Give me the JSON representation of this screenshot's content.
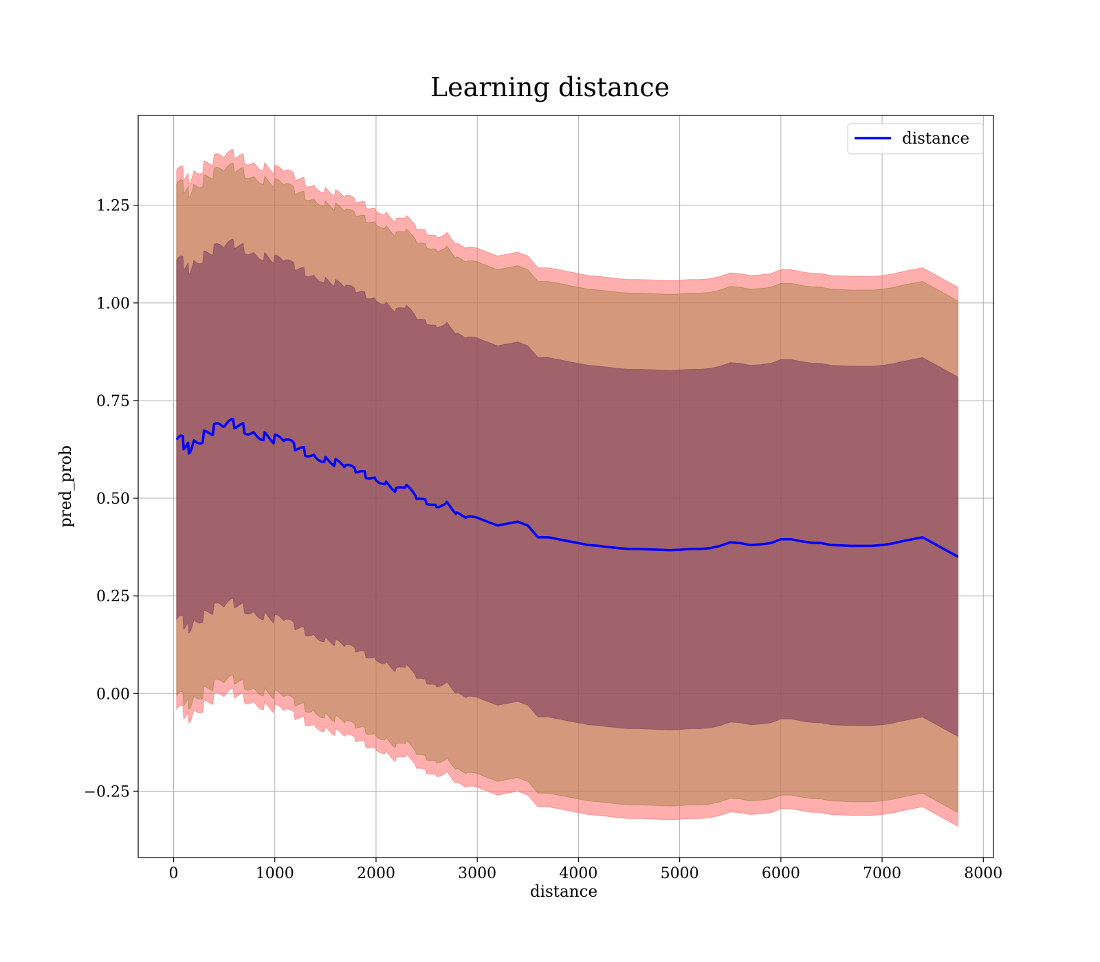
{
  "chart_data": {
    "type": "line",
    "title": "Learning distance",
    "xlabel": "distance",
    "ylabel": "pred_prob",
    "xlim": [
      -350,
      8100
    ],
    "ylim": [
      -0.42,
      1.48
    ],
    "xticks": [
      0,
      1000,
      2000,
      3000,
      4000,
      5000,
      6000,
      7000,
      8000
    ],
    "xtick_labels": [
      "0",
      "1000",
      "2000",
      "3000",
      "4000",
      "5000",
      "6000",
      "7000",
      "8000"
    ],
    "yticks": [
      -0.25,
      0.0,
      0.25,
      0.5,
      0.75,
      1.0,
      1.25
    ],
    "ytick_labels": [
      "−0.25",
      "0.00",
      "0.25",
      "0.50",
      "0.75",
      "1.00",
      "1.25"
    ],
    "grid": true,
    "legend_position": "top-right",
    "series": [
      {
        "name": "distance",
        "color": "#0000ff",
        "x": [
          30,
          100,
          150,
          200,
          300,
          400,
          500,
          600,
          700,
          800,
          900,
          1000,
          1100,
          1200,
          1300,
          1400,
          1500,
          1600,
          1700,
          1800,
          1900,
          2000,
          2100,
          2200,
          2300,
          2400,
          2500,
          2600,
          2700,
          2800,
          2900,
          3000,
          3100,
          3200,
          3300,
          3400,
          3500,
          3600,
          3700,
          3800,
          3900,
          4000,
          4100,
          4200,
          4300,
          4400,
          4500,
          4600,
          4700,
          4800,
          4900,
          5000,
          5100,
          5200,
          5300,
          5400,
          5500,
          5600,
          5700,
          5800,
          5900,
          6000,
          6100,
          6200,
          6300,
          6400,
          6500,
          6600,
          6700,
          6800,
          6900,
          7000,
          7100,
          7200,
          7300,
          7400,
          7750
        ],
        "y": [
          0.65,
          0.64,
          0.63,
          0.65,
          0.66,
          0.675,
          0.68,
          0.69,
          0.68,
          0.67,
          0.66,
          0.65,
          0.645,
          0.63,
          0.62,
          0.61,
          0.6,
          0.59,
          0.58,
          0.57,
          0.56,
          0.55,
          0.54,
          0.52,
          0.53,
          0.5,
          0.49,
          0.48,
          0.49,
          0.46,
          0.45,
          0.45,
          0.44,
          0.43,
          0.435,
          0.44,
          0.43,
          0.4,
          0.4,
          0.395,
          0.39,
          0.385,
          0.38,
          0.378,
          0.375,
          0.372,
          0.37,
          0.37,
          0.369,
          0.368,
          0.367,
          0.368,
          0.37,
          0.37,
          0.372,
          0.378,
          0.387,
          0.385,
          0.38,
          0.382,
          0.385,
          0.395,
          0.395,
          0.39,
          0.386,
          0.385,
          0.38,
          0.379,
          0.378,
          0.378,
          0.378,
          0.38,
          0.384,
          0.39,
          0.395,
          0.4,
          0.35
        ]
      }
    ],
    "bands": [
      {
        "name": "",
        "color": "#ff6b6b",
        "opacity": 0.55,
        "lower_offset": -0.69,
        "upper_offset": 0.69
      },
      {
        "name": "",
        "color": "#a08040",
        "opacity": 0.45,
        "lower_offset": -0.655,
        "upper_offset": 0.655
      },
      {
        "name": "",
        "color": "#7f3f60",
        "opacity": 0.6,
        "lower_offset": -0.46,
        "upper_offset": 0.46
      }
    ]
  }
}
